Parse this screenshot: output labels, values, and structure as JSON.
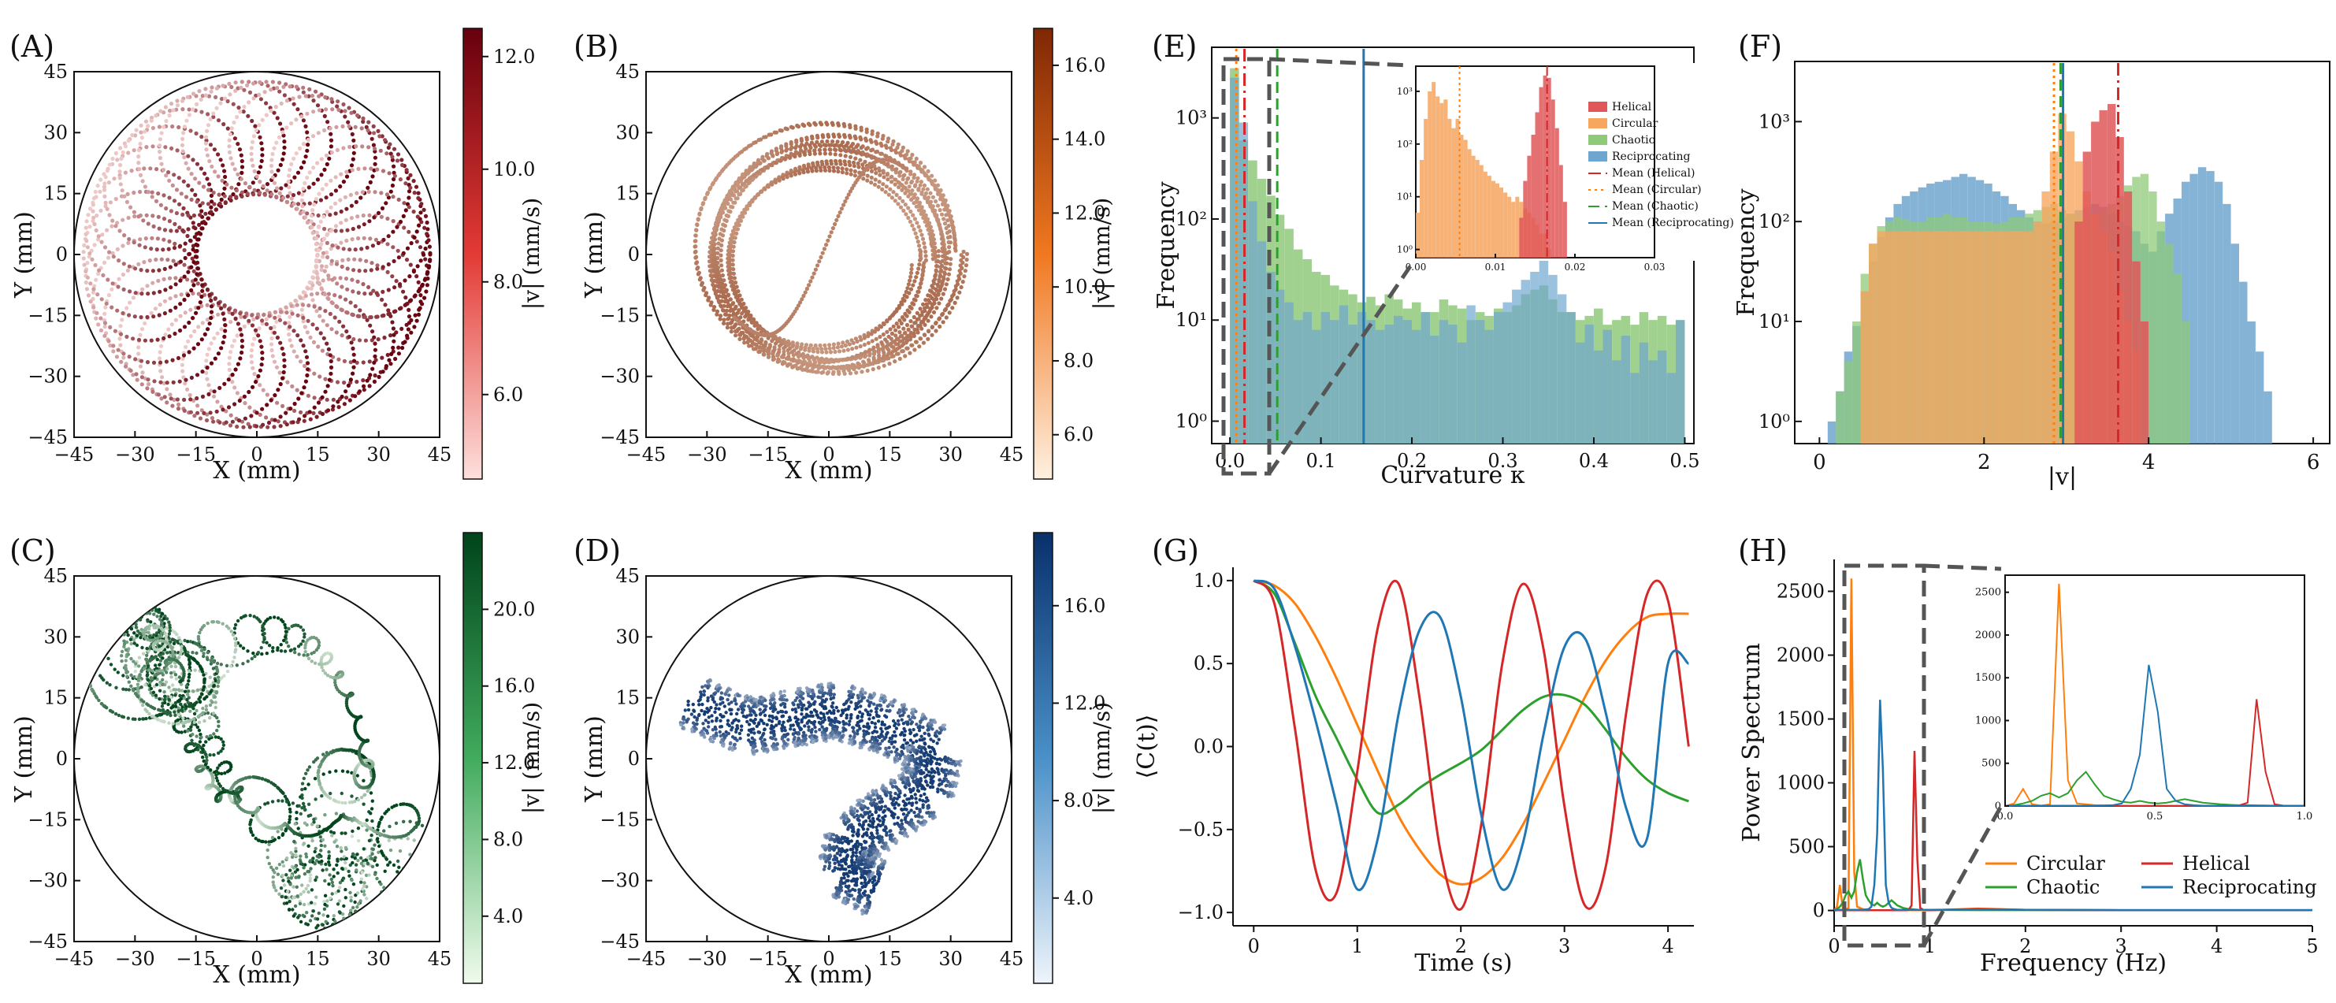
{
  "panels": {
    "A": {
      "label": "(A)",
      "xlabel": "X (mm)",
      "ylabel": "Y (mm)",
      "ticks": [
        "−45",
        "−30",
        "−15",
        "0",
        "15",
        "30",
        "45"
      ],
      "colorbar": {
        "label": "|v| (mm/s)",
        "ticks": [
          "6.0",
          "8.0",
          "10.0",
          "12.0"
        ],
        "range": [
          4.5,
          12.5
        ],
        "low": "#fde0dd",
        "high": "#67000d"
      }
    },
    "B": {
      "label": "(B)",
      "xlabel": "X (mm)",
      "ylabel": "Y (mm)",
      "ticks": [
        "−45",
        "−30",
        "−15",
        "0",
        "15",
        "30",
        "45"
      ],
      "colorbar": {
        "label": "|v| (mm/s)",
        "ticks": [
          "6.0",
          "8.0",
          "10.0",
          "12.0",
          "14.0",
          "16.0"
        ],
        "range": [
          4.8,
          17.0
        ],
        "low": "#fff0e0",
        "high": "#7f2704"
      }
    },
    "C": {
      "label": "(C)",
      "xlabel": "X (mm)",
      "ylabel": "Y (mm)",
      "ticks": [
        "−45",
        "−30",
        "−15",
        "0",
        "15",
        "30",
        "45"
      ],
      "colorbar": {
        "label": "|v| (mm/s)",
        "ticks": [
          "4.0",
          "8.0",
          "12.0",
          "16.0",
          "20.0"
        ],
        "range": [
          0.5,
          24.0
        ],
        "low": "#f0fbec",
        "high": "#00441b"
      }
    },
    "D": {
      "label": "(D)",
      "xlabel": "X (mm)",
      "ylabel": "Y (mm)",
      "ticks": [
        "−45",
        "−30",
        "−15",
        "0",
        "15",
        "30",
        "45"
      ],
      "colorbar": {
        "label": "|v| (mm/s)",
        "ticks": [
          "4.0",
          "8.0",
          "12.0",
          "16.0"
        ],
        "range": [
          0.5,
          19.0
        ],
        "low": "#eef4fb",
        "high": "#08306b"
      }
    },
    "E": {
      "label": "(E)"
    },
    "F": {
      "label": "(F)"
    },
    "G": {
      "label": "(G)"
    },
    "H": {
      "label": "(H)"
    }
  },
  "chart_data": [
    {
      "id": "E",
      "type": "bar",
      "title": "",
      "xlabel": "Curvature κ",
      "ylabel": "Frequency",
      "yscale": "log",
      "xlim": [
        -0.02,
        0.51
      ],
      "ylim": [
        0.6,
        5000
      ],
      "xticks": [
        "0.0",
        "0.1",
        "0.2",
        "0.3",
        "0.4",
        "0.5"
      ],
      "yticks": [
        "10⁰",
        "10¹",
        "10²",
        "10³"
      ],
      "bins": {
        "start": 0.0,
        "width": 0.01
      },
      "series": [
        {
          "name": "Chaotic",
          "color": "#8fc97a",
          "values": [
            3100,
            600,
            380,
            250,
            170,
            110,
            80,
            50,
            40,
            30,
            28,
            22,
            20,
            18,
            15,
            17,
            14,
            18,
            16,
            13,
            15,
            12,
            12,
            16,
            14,
            13,
            10,
            12,
            11,
            13,
            12,
            14,
            18,
            20,
            22,
            16,
            12,
            12,
            10,
            11,
            13,
            9,
            10,
            11,
            9,
            12,
            10,
            11,
            9,
            10
          ]
        },
        {
          "name": "Reciprocating",
          "color": "#6fa6cf",
          "values": [
            2500,
            900,
            150,
            60,
            30,
            20,
            15,
            10,
            12,
            8,
            12,
            10,
            14,
            9,
            12,
            10,
            8,
            9,
            11,
            10,
            8,
            12,
            7,
            10,
            9,
            6,
            14,
            10,
            8,
            12,
            15,
            20,
            25,
            30,
            45,
            28,
            18,
            12,
            6,
            9,
            5,
            8,
            4,
            7,
            3,
            6,
            4,
            5,
            3,
            10
          ]
        }
      ],
      "mean_lines": [
        {
          "name": "Mean (Helical)",
          "value": 0.016,
          "color": "#d62728",
          "style": "dashdot"
        },
        {
          "name": "Mean (Circular)",
          "value": 0.007,
          "color": "#ff7f0e",
          "style": "dotted"
        },
        {
          "name": "Mean (Chaotic)",
          "value": 0.052,
          "color": "#2ca02c",
          "style": "dashed"
        },
        {
          "name": "Mean (Reciprocating)",
          "value": 0.147,
          "color": "#1f77b4",
          "style": "solid"
        }
      ],
      "inset": {
        "xlim": [
          0.0,
          0.03
        ],
        "xticks": [
          "0.00",
          "0.01",
          "0.02",
          "0.03"
        ],
        "yticks": [
          "10⁰",
          "10¹",
          "10²",
          "10³"
        ],
        "bins": {
          "start": 0.0,
          "width": 0.0005
        },
        "series": [
          {
            "name": "Circular",
            "color": "#f6a65f",
            "values": [
              5,
              50,
              300,
              1000,
              1500,
              800,
              600,
              700,
              300,
              200,
              300,
              150,
              120,
              80,
              60,
              50,
              40,
              30,
              25,
              20,
              18,
              15,
              12,
              10,
              8,
              10,
              8,
              6,
              5,
              4,
              3,
              2,
              2,
              1
            ]
          },
          {
            "name": "Helical",
            "color": "#e15759",
            "values": [
              0,
              0,
              0,
              0,
              0,
              0,
              0,
              0,
              0,
              0,
              0,
              0,
              0,
              0,
              0,
              0,
              0,
              0,
              0,
              0,
              0,
              0,
              0,
              0,
              0,
              0,
              4,
              20,
              60,
              150,
              400,
              1200,
              2000,
              1800,
              700,
              200,
              40,
              8
            ]
          }
        ],
        "legend": [
          "Helical",
          "Circular",
          "Chaotic",
          "Reciprocating",
          "Mean (Helical)",
          "Mean (Circular)",
          "Mean (Chaotic)",
          "Mean (Reciprocating)"
        ]
      }
    },
    {
      "id": "F",
      "type": "bar",
      "title": "",
      "xlabel": "|v|",
      "ylabel": "Frequency",
      "yscale": "log",
      "xlim": [
        -0.3,
        6.2
      ],
      "ylim": [
        0.6,
        4000
      ],
      "xticks": [
        "0",
        "2",
        "4",
        "6"
      ],
      "yticks": [
        "10⁰",
        "10¹",
        "10²",
        "10³"
      ],
      "bins": {
        "start": 0.1,
        "width": 0.1
      },
      "series": [
        {
          "name": "Reciprocating",
          "color": "#6fa6cf",
          "values": [
            1,
            2,
            5,
            9,
            20,
            40,
            70,
            110,
            150,
            180,
            200,
            220,
            240,
            250,
            260,
            280,
            300,
            280,
            260,
            240,
            200,
            180,
            150,
            130,
            110,
            100,
            95,
            100,
            110,
            120,
            130,
            140,
            150,
            140,
            120,
            100,
            90,
            80,
            60,
            50,
            80,
            120,
            170,
            250,
            300,
            350,
            320,
            250,
            150,
            60,
            25,
            10,
            5,
            2
          ]
        },
        {
          "name": "Chaotic",
          "color": "#8fc97a",
          "values": [
            0,
            2,
            4,
            10,
            30,
            60,
            90,
            100,
            110,
            105,
            100,
            100,
            110,
            110,
            120,
            110,
            110,
            100,
            100,
            100,
            95,
            100,
            110,
            110,
            120,
            130,
            140,
            150,
            130,
            120,
            110,
            100,
            120,
            130,
            150,
            180,
            230,
            280,
            300,
            200,
            100,
            60,
            30,
            10
          ]
        },
        {
          "name": "Circular",
          "color": "#f6a65f",
          "values": [
            0,
            0,
            0,
            0,
            20,
            60,
            80,
            80,
            80,
            80,
            80,
            80,
            80,
            80,
            80,
            80,
            80,
            80,
            80,
            80,
            80,
            80,
            80,
            80,
            80,
            100,
            200,
            500,
            1200,
            800,
            400,
            200,
            120,
            80,
            50,
            20,
            10,
            5
          ]
        },
        {
          "name": "Helical",
          "color": "#e15759",
          "values": [
            0,
            0,
            0,
            0,
            0,
            0,
            0,
            0,
            0,
            0,
            0,
            0,
            0,
            0,
            0,
            0,
            0,
            0,
            0,
            0,
            0,
            0,
            0,
            0,
            0,
            0,
            0,
            0,
            0,
            0,
            100,
            500,
            1000,
            1300,
            1500,
            700,
            200,
            40,
            10
          ]
        }
      ],
      "mean_lines": [
        {
          "name": "Mean (Circular)",
          "value": 2.85,
          "color": "#ff7f0e",
          "style": "dotted"
        },
        {
          "name": "Mean (Chaotic)",
          "value": 2.93,
          "color": "#2ca02c",
          "style": "dashed"
        },
        {
          "name": "Mean (Reciprocating)",
          "value": 2.96,
          "color": "#1f77b4",
          "style": "solid"
        },
        {
          "name": "Mean (Helical)",
          "value": 3.63,
          "color": "#d62728",
          "style": "dashdot"
        }
      ]
    },
    {
      "id": "G",
      "type": "line",
      "title": "",
      "xlabel": "Time (s)",
      "ylabel": "⟨C(t)⟩",
      "xlim": [
        -0.2,
        4.25
      ],
      "ylim": [
        -1.08,
        1.08
      ],
      "xticks": [
        "0",
        "1",
        "2",
        "3",
        "4"
      ],
      "yticks": [
        "−1.0",
        "−0.5",
        "0.0",
        "0.5",
        "1.0"
      ],
      "x": [
        0,
        0.2,
        0.4,
        0.6,
        0.8,
        1.0,
        1.2,
        1.4,
        1.6,
        1.8,
        2.0,
        2.2,
        2.4,
        2.6,
        2.8,
        3.0,
        3.2,
        3.4,
        3.6,
        3.8,
        4.0,
        4.2
      ],
      "series": [
        {
          "name": "Circular",
          "color": "#ff7f0e",
          "values": [
            1.0,
            0.97,
            0.86,
            0.66,
            0.41,
            0.13,
            -0.15,
            -0.42,
            -0.62,
            -0.77,
            -0.83,
            -0.79,
            -0.67,
            -0.47,
            -0.22,
            0.04,
            0.3,
            0.52,
            0.68,
            0.78,
            0.8,
            0.8
          ]
        },
        {
          "name": "Chaotic",
          "color": "#2ca02c",
          "values": [
            1.0,
            0.92,
            0.62,
            0.3,
            0.05,
            -0.2,
            -0.4,
            -0.35,
            -0.25,
            -0.17,
            -0.1,
            -0.02,
            0.1,
            0.22,
            0.3,
            0.31,
            0.25,
            0.1,
            -0.07,
            -0.2,
            -0.28,
            -0.33
          ]
        },
        {
          "name": "Helical",
          "color": "#d62728",
          "values": [
            1.0,
            0.86,
            0.1,
            -0.75,
            -0.88,
            -0.15,
            0.72,
            0.98,
            0.3,
            -0.62,
            -0.98,
            -0.46,
            0.5,
            0.98,
            0.58,
            -0.36,
            -0.96,
            -0.72,
            0.22,
            0.92,
            0.88,
            0.0
          ]
        },
        {
          "name": "Reciprocating",
          "color": "#1f77b4",
          "values": [
            1.0,
            0.95,
            0.6,
            0.15,
            -0.35,
            -0.86,
            -0.55,
            0.2,
            0.7,
            0.78,
            0.3,
            -0.42,
            -0.86,
            -0.58,
            0.08,
            0.6,
            0.65,
            0.2,
            -0.38,
            -0.55,
            0.5,
            0.5
          ]
        }
      ]
    },
    {
      "id": "H",
      "type": "line",
      "title": "",
      "xlabel": "Frequency (Hz)",
      "ylabel": "Power Spectrum",
      "xlim": [
        0,
        5
      ],
      "ylim": [
        -120,
        2750
      ],
      "xticks": [
        "0",
        "1",
        "2",
        "3",
        "4",
        "5"
      ],
      "yticks": [
        "0",
        "500",
        "1000",
        "1500",
        "2000",
        "2500"
      ],
      "x": [
        0,
        0.03,
        0.06,
        0.09,
        0.12,
        0.15,
        0.18,
        0.21,
        0.24,
        0.27,
        0.3,
        0.33,
        0.36,
        0.39,
        0.42,
        0.45,
        0.48,
        0.51,
        0.54,
        0.57,
        0.6,
        0.63,
        0.66,
        0.69,
        0.72,
        0.75,
        0.78,
        0.81,
        0.84,
        0.87,
        0.9,
        0.93,
        0.96,
        1.0,
        1.5,
        2.0,
        3.0,
        4.0,
        5.0
      ],
      "series": [
        {
          "name": "Circular",
          "color": "#ff7f0e",
          "values": [
            0,
            30,
            200,
            20,
            5,
            20,
            2600,
            300,
            30,
            20,
            10,
            5,
            5,
            3,
            2,
            2,
            2,
            2,
            2,
            2,
            2,
            2,
            2,
            2,
            2,
            2,
            2,
            2,
            2,
            2,
            2,
            2,
            2,
            2,
            15,
            5,
            2,
            2,
            2
          ]
        },
        {
          "name": "Chaotic",
          "color": "#2ca02c",
          "values": [
            0,
            10,
            30,
            60,
            120,
            150,
            100,
            150,
            300,
            400,
            250,
            120,
            80,
            50,
            40,
            60,
            40,
            30,
            40,
            60,
            80,
            60,
            40,
            30,
            20,
            15,
            10,
            10,
            8,
            6,
            5,
            5,
            4,
            4,
            3,
            3,
            3,
            3,
            3
          ]
        },
        {
          "name": "Helical",
          "color": "#d62728",
          "values": [
            0,
            2,
            2,
            2,
            2,
            2,
            2,
            2,
            2,
            2,
            2,
            2,
            2,
            2,
            2,
            2,
            2,
            2,
            2,
            2,
            2,
            2,
            2,
            2,
            2,
            2,
            5,
            40,
            1250,
            400,
            20,
            5,
            3,
            2,
            12,
            5,
            2,
            2,
            2
          ]
        },
        {
          "name": "Reciprocating",
          "color": "#1f77b4",
          "values": [
            0,
            5,
            5,
            5,
            5,
            5,
            5,
            5,
            5,
            5,
            5,
            8,
            10,
            30,
            200,
            600,
            1650,
            1100,
            200,
            60,
            20,
            10,
            5,
            5,
            5,
            5,
            5,
            5,
            5,
            5,
            5,
            5,
            5,
            5,
            8,
            5,
            3,
            3,
            3
          ]
        }
      ],
      "legend": [
        "Circular",
        "Helical",
        "Chaotic",
        "Reciprocating"
      ],
      "inset": {
        "xlim": [
          0.0,
          1.0
        ],
        "ylim": [
          0,
          2700
        ],
        "xticks": [
          "0.0",
          "0.5",
          "1.0"
        ],
        "yticks": [
          "0",
          "500",
          "1000",
          "1500",
          "2000",
          "2500"
        ]
      }
    }
  ]
}
